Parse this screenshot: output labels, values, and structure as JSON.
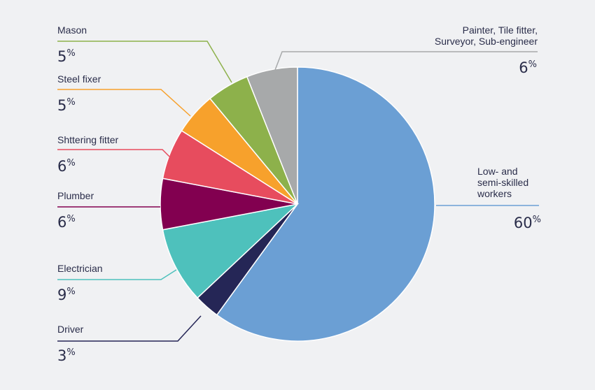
{
  "chart_data": {
    "type": "pie",
    "title": "",
    "slices": [
      {
        "name": "Low- and semi-skilled workers",
        "label_lines": [
          "Low- and",
          "semi-skilled",
          "workers"
        ],
        "value": 60,
        "value_label": "60",
        "color": "#6b9fd4"
      },
      {
        "name": "Driver",
        "label_lines": [
          "Driver"
        ],
        "value": 3,
        "value_label": "3",
        "color": "#252656"
      },
      {
        "name": "Electrician",
        "label_lines": [
          "Electrician"
        ],
        "value": 9,
        "value_label": "9",
        "color": "#4ec1bc"
      },
      {
        "name": "Plumber",
        "label_lines": [
          "Plumber"
        ],
        "value": 6,
        "value_label": "6",
        "color": "#820050"
      },
      {
        "name": "Shttering fitter",
        "label_lines": [
          "Shttering fitter"
        ],
        "value": 6,
        "value_label": "6",
        "color": "#e74c5e"
      },
      {
        "name": "Steel fixer",
        "label_lines": [
          "Steel fixer"
        ],
        "value": 5,
        "value_label": "5",
        "color": "#f7a12c"
      },
      {
        "name": "Mason",
        "label_lines": [
          "Mason"
        ],
        "value": 5,
        "value_label": "5",
        "color": "#8db14b"
      },
      {
        "name": "Painter, Tile fitter, Surveyor, Sub-engineer",
        "label_lines": [
          "Painter, Tile fitter,",
          "Surveyor, Sub-engineer"
        ],
        "value": 6,
        "value_label": "6",
        "color": "#a7a9aa"
      }
    ],
    "percent_symbol": "%"
  }
}
